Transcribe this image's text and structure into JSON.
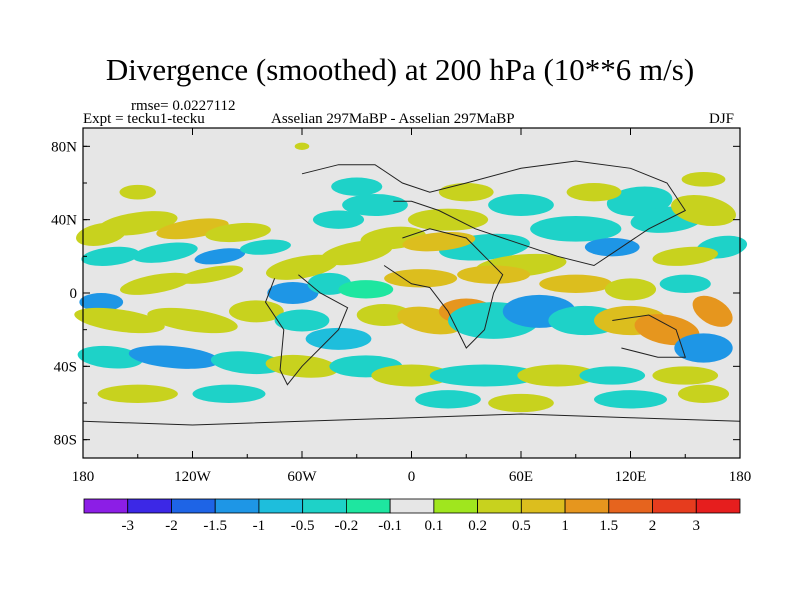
{
  "chart_data": {
    "type": "heatmap",
    "title": "Divergence (smoothed) at 200 hPa (10**6 m/s)",
    "rmse_label": "rmse= 0.0227112",
    "expt_label": "Expt = tecku1-tecku",
    "center_label": "Asselian 297MaBP - Asselian 297MaBP",
    "season_label": "DJF",
    "x_ticks": [
      "180",
      "120W",
      "60W",
      "0",
      "60E",
      "120E",
      "180"
    ],
    "x_tick_values": [
      -180,
      -120,
      -60,
      0,
      60,
      120,
      180
    ],
    "y_ticks": [
      "80N",
      "40N",
      "0",
      "40S",
      "80S"
    ],
    "y_tick_values": [
      80,
      40,
      0,
      -40,
      -80
    ],
    "xlim": [
      -180,
      180
    ],
    "ylim": [
      -90,
      90
    ],
    "colorbar_labels": [
      "-3",
      "-2",
      "-1.5",
      "-1",
      "-0.5",
      "-0.2",
      "-0.1",
      "0.1",
      "0.2",
      "0.5",
      "1",
      "1.5",
      "2",
      "3"
    ],
    "colorbar_colors": [
      "#8c1ee6",
      "#3c28e6",
      "#1e64e6",
      "#1e96e6",
      "#1ebedc",
      "#1ed2c8",
      "#1ee6a0",
      "#e6e6e6",
      "#a0e61e",
      "#c8d21e",
      "#dcbe1e",
      "#e6961e",
      "#e6641e",
      "#e63c1e",
      "#e61e1e"
    ]
  },
  "colors": {
    "background_field": "#e6e6e6",
    "coast": "#222222"
  }
}
